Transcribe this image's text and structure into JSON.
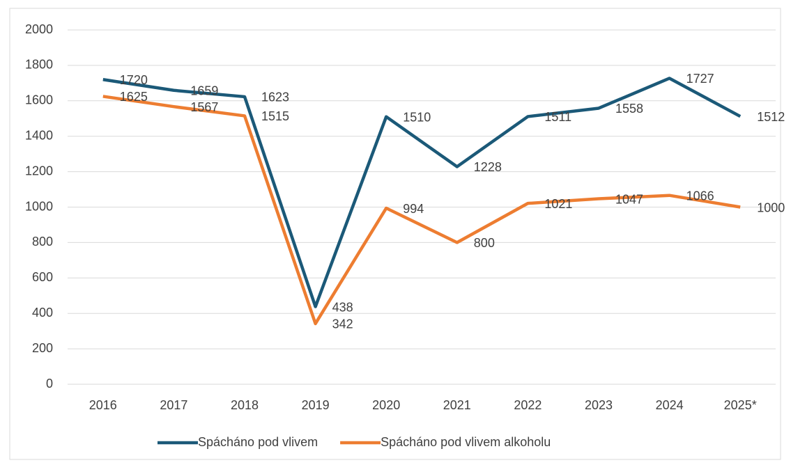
{
  "chart_data": {
    "type": "line",
    "categories": [
      "2016",
      "2017",
      "2018",
      "2019",
      "2020",
      "2021",
      "2022",
      "2023",
      "2024",
      "2025*"
    ],
    "series": [
      {
        "name": "Spácháno pod vlivem",
        "color": "#1b5978",
        "values": [
          1720,
          1659,
          1623,
          438,
          1510,
          1228,
          1511,
          1558,
          1727,
          1512
        ]
      },
      {
        "name": "Spácháno pod vlivem alkoholu",
        "color": "#ed7d31",
        "values": [
          1625,
          1567,
          1515,
          342,
          994,
          800,
          1021,
          1047,
          1066,
          1000
        ]
      }
    ],
    "ylim": [
      0,
      2000
    ],
    "yticks": [
      0,
      200,
      400,
      600,
      800,
      1000,
      1200,
      1400,
      1600,
      1800,
      2000
    ],
    "grid": true,
    "legend": "bottom"
  }
}
